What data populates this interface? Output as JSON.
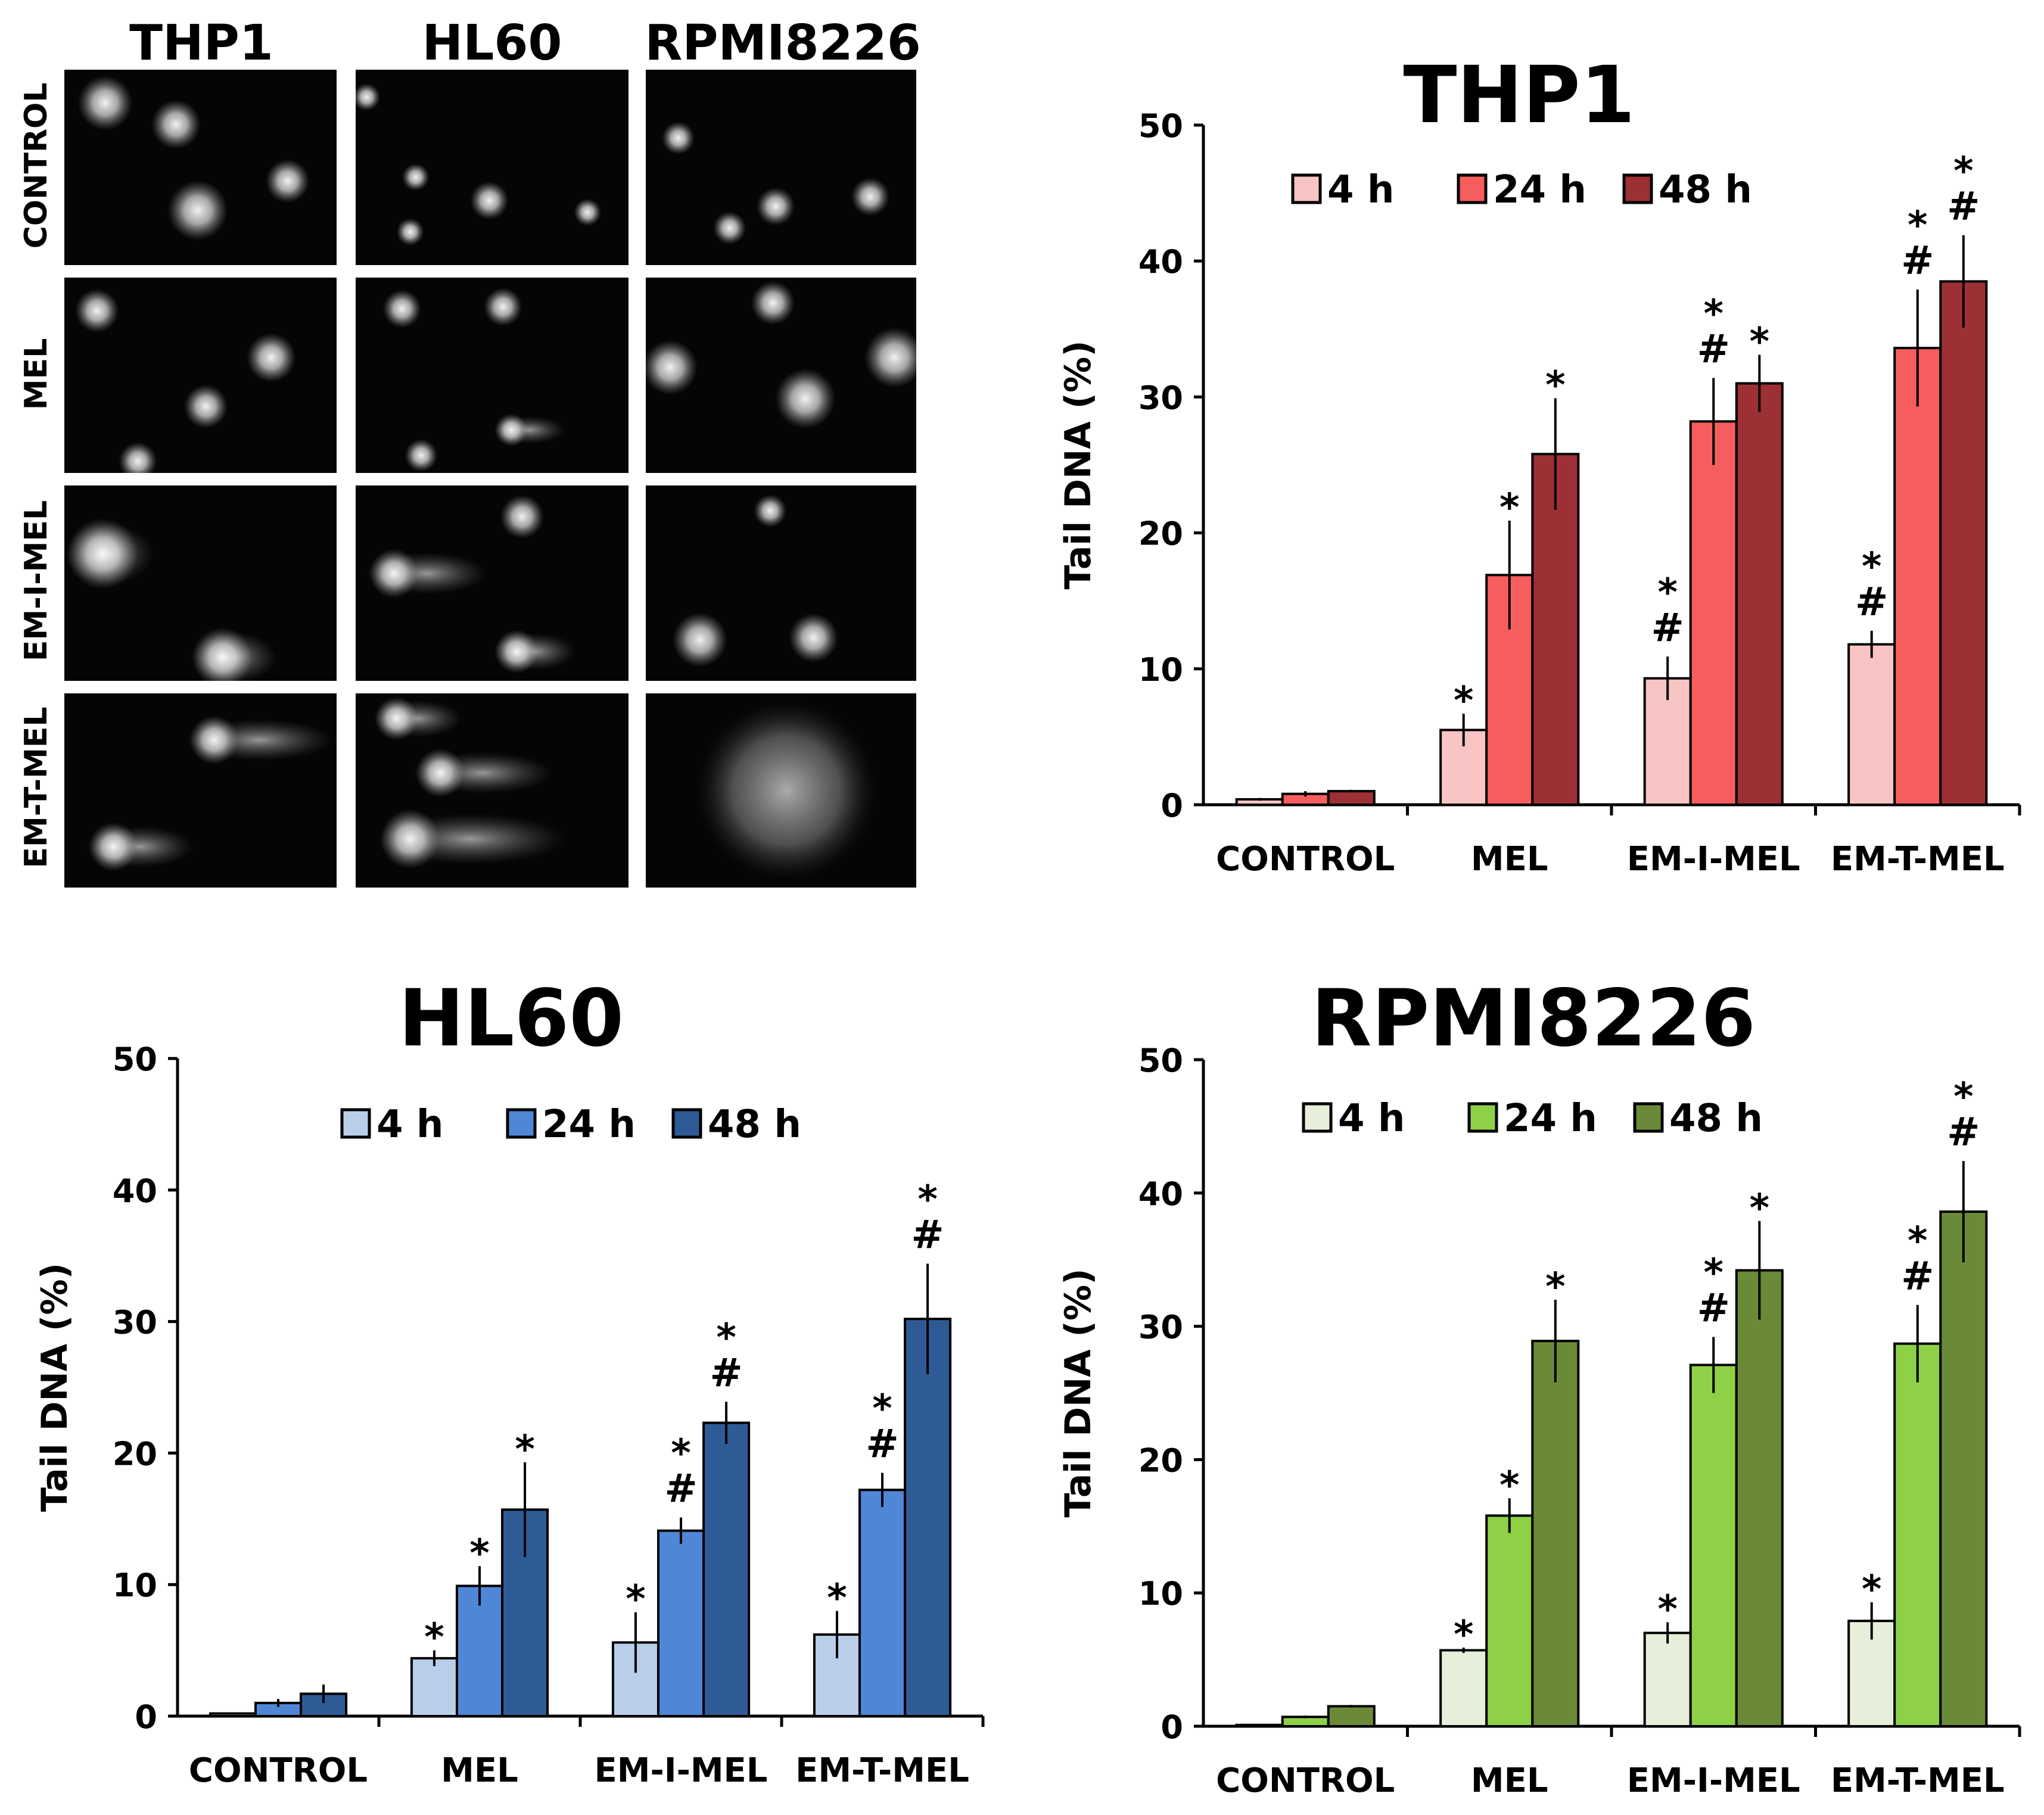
{
  "micrographs": {
    "column_labels": [
      "THP1",
      "HL60",
      "RPMI8226"
    ],
    "row_labels": [
      "CONTROL",
      "MEL",
      "EM-I-MEL",
      "EM-T-MEL"
    ]
  },
  "colors": {
    "THP1": [
      "#f8c4c4",
      "#f65e5e",
      "#9c3035"
    ],
    "HL60": [
      "#b9cfe9",
      "#4f86d6",
      "#2e5b96"
    ],
    "RPMI8226": [
      "#e7efdb",
      "#8ed147",
      "#6b8a38"
    ]
  },
  "chart_data": [
    {
      "type": "bar",
      "title": "THP1",
      "ylabel": "Tail DNA (%)",
      "xlabel": "",
      "ylim": [
        0,
        50
      ],
      "yticks": [
        "0",
        "10",
        "20",
        "30",
        "40",
        "50"
      ],
      "categories": [
        "CONTROL",
        "MEL",
        "EM-I-MEL",
        "EM-T-MEL"
      ],
      "legend_position": "top",
      "series": [
        {
          "name": "4 h",
          "values": [
            0.4,
            5.5,
            9.3,
            11.8
          ],
          "errors": [
            0.1,
            1.2,
            1.6,
            1.0
          ],
          "annotations": [
            "",
            "*",
            "*\n#",
            "*\n#"
          ]
        },
        {
          "name": "24 h",
          "values": [
            0.8,
            16.9,
            28.2,
            33.6
          ],
          "errors": [
            0.2,
            4.0,
            3.2,
            4.3
          ],
          "annotations": [
            "",
            "*",
            "*\n#",
            "*\n#"
          ]
        },
        {
          "name": "48 h",
          "values": [
            1.0,
            25.8,
            31.0,
            38.5
          ],
          "errors": [
            0.1,
            4.1,
            2.1,
            3.4
          ],
          "annotations": [
            "",
            "*",
            "*",
            "*\n#"
          ]
        }
      ]
    },
    {
      "type": "bar",
      "title": "HL60",
      "ylabel": "Tail DNA (%)",
      "xlabel": "",
      "ylim": [
        0,
        50
      ],
      "yticks": [
        "0",
        "10",
        "20",
        "30",
        "40",
        "50"
      ],
      "categories": [
        "CONTROL",
        "MEL",
        "EM-I-MEL",
        "EM-T-MEL"
      ],
      "legend_position": "top",
      "series": [
        {
          "name": "4 h",
          "values": [
            0.2,
            4.4,
            5.6,
            6.2
          ],
          "errors": [
            0.05,
            0.6,
            2.3,
            1.8
          ],
          "annotations": [
            "",
            "*",
            "*",
            "*"
          ]
        },
        {
          "name": "24 h",
          "values": [
            1.0,
            9.9,
            14.1,
            17.2
          ],
          "errors": [
            0.3,
            1.5,
            1.0,
            1.3
          ],
          "annotations": [
            "",
            "*",
            "*\n#",
            "*\n#"
          ]
        },
        {
          "name": "48 h",
          "values": [
            1.7,
            15.7,
            22.3,
            30.2
          ],
          "errors": [
            0.7,
            3.6,
            1.6,
            4.2
          ],
          "annotations": [
            "",
            "*",
            "*\n#",
            "*\n#"
          ]
        }
      ]
    },
    {
      "type": "bar",
      "title": "RPMI8226",
      "ylabel": "Tail DNA (%)",
      "xlabel": "",
      "ylim": [
        0,
        50
      ],
      "yticks": [
        "0",
        "10",
        "20",
        "30",
        "40",
        "50"
      ],
      "categories": [
        "CONTROL",
        "MEL",
        "EM-I-MEL",
        "EM-T-MEL"
      ],
      "legend_position": "top",
      "series": [
        {
          "name": "4 h",
          "values": [
            0.1,
            5.7,
            7.0,
            7.9
          ],
          "errors": [
            0.05,
            0.2,
            0.8,
            1.4
          ],
          "annotations": [
            "",
            "*",
            "*",
            "*"
          ]
        },
        {
          "name": "24 h",
          "values": [
            0.7,
            15.8,
            27.1,
            28.7
          ],
          "errors": [
            0.1,
            1.3,
            2.1,
            2.9
          ],
          "annotations": [
            "",
            "*",
            "*\n#",
            "*\n#"
          ]
        },
        {
          "name": "48 h",
          "values": [
            1.5,
            28.9,
            34.2,
            38.6
          ],
          "errors": [
            0.1,
            3.1,
            3.7,
            3.8
          ],
          "annotations": [
            "",
            "*",
            "*",
            "*\n#"
          ]
        }
      ]
    }
  ]
}
